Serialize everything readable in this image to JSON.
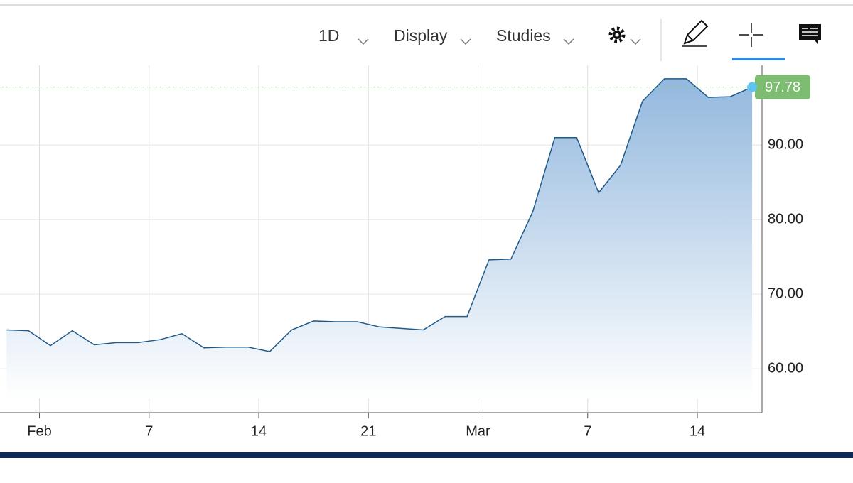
{
  "toolbar": {
    "items": [
      "1D",
      "Display",
      "Studies"
    ]
  },
  "chart_data": {
    "type": "area",
    "x": [
      -1,
      0,
      1,
      2,
      3,
      4,
      5,
      6,
      7,
      8,
      9,
      10,
      11,
      12,
      13,
      14,
      15,
      16,
      17,
      18,
      19,
      20,
      21,
      22,
      23,
      24,
      25,
      26,
      27,
      28,
      29,
      30,
      31,
      32,
      33
    ],
    "values": [
      65.2,
      65.1,
      63.1,
      65.1,
      63.2,
      63.5,
      63.5,
      63.9,
      64.7,
      62.8,
      62.9,
      62.9,
      62.3,
      65.2,
      66.4,
      66.3,
      66.3,
      65.6,
      65.4,
      65.2,
      67.0,
      67.0,
      74.6,
      74.7,
      81.1,
      91.0,
      91.0,
      83.6,
      87.3,
      95.9,
      98.9,
      98.9,
      96.4,
      96.5,
      97.78
    ],
    "color": "#1f5a8a",
    "xlim": [
      -1.3,
      33.45
    ],
    "ylim": [
      54.1,
      100.7
    ],
    "xticks": [
      {
        "value": 0.5,
        "label": "Feb"
      },
      {
        "value": 5.5,
        "label": "7"
      },
      {
        "value": 10.5,
        "label": "14"
      },
      {
        "value": 15.5,
        "label": "21"
      },
      {
        "value": 20.5,
        "label": "Mar"
      },
      {
        "value": 25.5,
        "label": "7"
      },
      {
        "value": 30.5,
        "label": "14"
      }
    ],
    "yticks": [
      {
        "value": 60,
        "label": "60.00"
      },
      {
        "value": 70,
        "label": "70.00"
      },
      {
        "value": 80,
        "label": "80.00"
      },
      {
        "value": 90,
        "label": "90.00"
      }
    ],
    "grid": true
  }
}
